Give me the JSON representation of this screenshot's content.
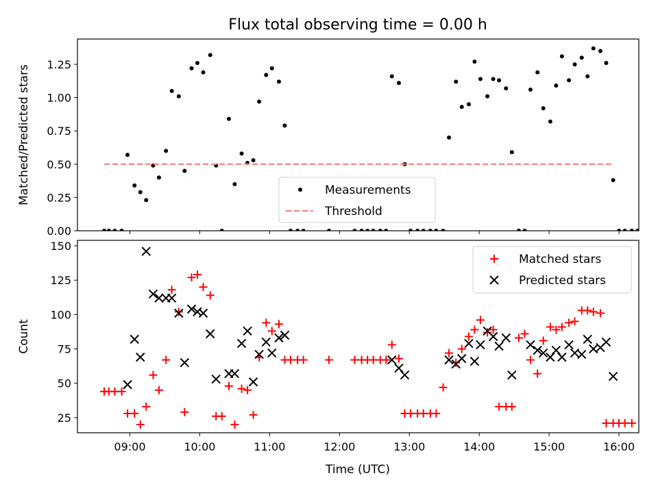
{
  "figure": {
    "title": "Flux total observing time = 0.00 h",
    "xlabel": "Time (UTC)"
  },
  "chart_data": [
    {
      "type": "scatter",
      "ylabel": "Matched/Predicted stars",
      "ylim": [
        0,
        1.44
      ],
      "xlim": [
        "08:15",
        "16:17"
      ],
      "yticks": [
        "0.00",
        "0.25",
        "0.50",
        "0.75",
        "1.00",
        "1.25"
      ],
      "legend_position": "lower-center",
      "series": [
        {
          "name": "Measurements",
          "marker": "dot",
          "color": "#000000",
          "points": [
            [
              "08:38",
              0
            ],
            [
              "08:42",
              0
            ],
            [
              "08:47",
              0
            ],
            [
              "08:53",
              0
            ],
            [
              "08:58",
              0.57
            ],
            [
              "09:04",
              0.34
            ],
            [
              "09:09",
              0.29
            ],
            [
              "09:14",
              0.23
            ],
            [
              "09:20",
              0.49
            ],
            [
              "09:25",
              0.4
            ],
            [
              "09:31",
              0.6
            ],
            [
              "09:36",
              1.05
            ],
            [
              "09:42",
              1.01
            ],
            [
              "09:47",
              0.45
            ],
            [
              "09:53",
              1.22
            ],
            [
              "09:58",
              1.26
            ],
            [
              "10:03",
              1.19
            ],
            [
              "10:09",
              1.32
            ],
            [
              "10:14",
              0.49
            ],
            [
              "10:19",
              0
            ],
            [
              "10:25",
              0.84
            ],
            [
              "10:30",
              0.35
            ],
            [
              "10:36",
              0.58
            ],
            [
              "10:41",
              0.51
            ],
            [
              "10:46",
              0.53
            ],
            [
              "10:51",
              0.97
            ],
            [
              "10:57",
              1.17
            ],
            [
              "11:02",
              1.22
            ],
            [
              "11:08",
              1.12
            ],
            [
              "11:13",
              0.79
            ],
            [
              "11:18",
              0
            ],
            [
              "11:24",
              0
            ],
            [
              "11:29",
              0
            ],
            [
              "11:51",
              0
            ],
            [
              "12:13",
              0
            ],
            [
              "12:19",
              0
            ],
            [
              "12:24",
              0
            ],
            [
              "12:29",
              0
            ],
            [
              "12:35",
              0
            ],
            [
              "12:40",
              0
            ],
            [
              "12:45",
              1.16
            ],
            [
              "12:51",
              1.11
            ],
            [
              "12:56",
              0.5
            ],
            [
              "13:01",
              0
            ],
            [
              "13:07",
              0
            ],
            [
              "13:12",
              0
            ],
            [
              "13:18",
              0
            ],
            [
              "13:23",
              0
            ],
            [
              "13:29",
              0
            ],
            [
              "13:34",
              0.7
            ],
            [
              "13:40",
              1.12
            ],
            [
              "13:45",
              0.93
            ],
            [
              "13:51",
              0.95
            ],
            [
              "13:56",
              1.27
            ],
            [
              "14:01",
              1.14
            ],
            [
              "14:07",
              1.01
            ],
            [
              "14:12",
              1.14
            ],
            [
              "14:17",
              1.13
            ],
            [
              "14:23",
              1.07
            ],
            [
              "14:28",
              0.59
            ],
            [
              "14:34",
              0
            ],
            [
              "14:39",
              0
            ],
            [
              "14:44",
              1.06
            ],
            [
              "14:50",
              1.19
            ],
            [
              "14:55",
              0.92
            ],
            [
              "15:01",
              0.82
            ],
            [
              "15:06",
              1.09
            ],
            [
              "15:11",
              1.31
            ],
            [
              "15:17",
              1.13
            ],
            [
              "15:22",
              1.25
            ],
            [
              "15:28",
              1.3
            ],
            [
              "15:33",
              1.16
            ],
            [
              "15:38",
              1.37
            ],
            [
              "15:44",
              1.35
            ],
            [
              "15:49",
              1.26
            ],
            [
              "15:55",
              0.38
            ],
            [
              "16:00",
              0
            ],
            [
              "16:05",
              0
            ],
            [
              "16:11",
              0
            ],
            [
              "16:16",
              0
            ]
          ]
        },
        {
          "name": "Threshold",
          "marker": "dashed-line",
          "color": "#ff8080",
          "points": [
            [
              "08:38",
              0.5
            ],
            [
              "15:55",
              0.5
            ]
          ]
        }
      ]
    },
    {
      "type": "scatter",
      "ylabel": "Count",
      "ylim": [
        14,
        154
      ],
      "xlim": [
        "08:15",
        "16:17"
      ],
      "yticks": [
        "25",
        "50",
        "75",
        "100",
        "125",
        "150"
      ],
      "xticks": [
        "09:00",
        "10:00",
        "11:00",
        "12:00",
        "13:00",
        "14:00",
        "15:00",
        "16:00"
      ],
      "legend_position": "top-right",
      "series": [
        {
          "name": "Matched stars",
          "marker": "plus",
          "color": "#ff0000",
          "points": [
            [
              "08:38",
              44
            ],
            [
              "08:42",
              44
            ],
            [
              "08:47",
              44
            ],
            [
              "08:53",
              44
            ],
            [
              "08:58",
              28
            ],
            [
              "09:04",
              28
            ],
            [
              "09:09",
              20
            ],
            [
              "09:14",
              33
            ],
            [
              "09:20",
              56
            ],
            [
              "09:25",
              45
            ],
            [
              "09:31",
              67
            ],
            [
              "09:36",
              118
            ],
            [
              "09:42",
              102
            ],
            [
              "09:47",
              29
            ],
            [
              "09:53",
              127
            ],
            [
              "09:58",
              129
            ],
            [
              "10:03",
              120
            ],
            [
              "10:09",
              114
            ],
            [
              "10:14",
              26
            ],
            [
              "10:19",
              26
            ],
            [
              "10:25",
              48
            ],
            [
              "10:30",
              20
            ],
            [
              "10:36",
              46
            ],
            [
              "10:41",
              45
            ],
            [
              "10:46",
              27
            ],
            [
              "10:51",
              69
            ],
            [
              "10:57",
              94
            ],
            [
              "11:02",
              88
            ],
            [
              "11:08",
              93
            ],
            [
              "11:13",
              67
            ],
            [
              "11:18",
              67
            ],
            [
              "11:24",
              67
            ],
            [
              "11:29",
              67
            ],
            [
              "11:51",
              67
            ],
            [
              "12:13",
              67
            ],
            [
              "12:19",
              67
            ],
            [
              "12:24",
              67
            ],
            [
              "12:29",
              67
            ],
            [
              "12:35",
              67
            ],
            [
              "12:40",
              67
            ],
            [
              "12:45",
              78
            ],
            [
              "12:51",
              68
            ],
            [
              "12:56",
              28
            ],
            [
              "13:01",
              28
            ],
            [
              "13:07",
              28
            ],
            [
              "13:12",
              28
            ],
            [
              "13:18",
              28
            ],
            [
              "13:23",
              28
            ],
            [
              "13:29",
              47
            ],
            [
              "13:34",
              72
            ],
            [
              "13:40",
              65
            ],
            [
              "13:45",
              75
            ],
            [
              "13:51",
              84
            ],
            [
              "13:56",
              89
            ],
            [
              "14:01",
              96
            ],
            [
              "14:07",
              87
            ],
            [
              "14:12",
              89
            ],
            [
              "14:17",
              33
            ],
            [
              "14:23",
              33
            ],
            [
              "14:28",
              33
            ],
            [
              "14:34",
              83
            ],
            [
              "14:39",
              86
            ],
            [
              "14:44",
              67
            ],
            [
              "14:50",
              57
            ],
            [
              "14:55",
              81
            ],
            [
              "15:01",
              91
            ],
            [
              "15:06",
              89
            ],
            [
              "15:11",
              91
            ],
            [
              "15:17",
              94
            ],
            [
              "15:22",
              95
            ],
            [
              "15:28",
              103
            ],
            [
              "15:33",
              103
            ],
            [
              "15:38",
              102
            ],
            [
              "15:44",
              101
            ],
            [
              "15:49",
              21
            ],
            [
              "15:55",
              21
            ],
            [
              "16:00",
              21
            ],
            [
              "16:05",
              21
            ],
            [
              "16:11",
              21
            ]
          ]
        },
        {
          "name": "Predicted stars",
          "marker": "x",
          "color": "#000000",
          "points": [
            [
              "08:58",
              49
            ],
            [
              "09:04",
              82
            ],
            [
              "09:09",
              69
            ],
            [
              "09:14",
              146
            ],
            [
              "09:20",
              115
            ],
            [
              "09:25",
              112
            ],
            [
              "09:31",
              112
            ],
            [
              "09:36",
              112
            ],
            [
              "09:42",
              101
            ],
            [
              "09:47",
              65
            ],
            [
              "09:53",
              104
            ],
            [
              "09:58",
              102
            ],
            [
              "10:03",
              101
            ],
            [
              "10:09",
              86
            ],
            [
              "10:14",
              53
            ],
            [
              "10:25",
              57
            ],
            [
              "10:30",
              57
            ],
            [
              "10:36",
              79
            ],
            [
              "10:41",
              88
            ],
            [
              "10:46",
              51
            ],
            [
              "10:51",
              71
            ],
            [
              "10:57",
              80
            ],
            [
              "11:02",
              72
            ],
            [
              "11:08",
              83
            ],
            [
              "11:13",
              85
            ],
            [
              "12:45",
              67
            ],
            [
              "12:51",
              61
            ],
            [
              "12:56",
              56
            ],
            [
              "13:34",
              67
            ],
            [
              "13:40",
              64
            ],
            [
              "13:45",
              68
            ],
            [
              "13:51",
              79
            ],
            [
              "13:56",
              66
            ],
            [
              "14:01",
              78
            ],
            [
              "14:07",
              88
            ],
            [
              "14:12",
              84
            ],
            [
              "14:17",
              77
            ],
            [
              "14:23",
              83
            ],
            [
              "14:28",
              56
            ],
            [
              "14:44",
              78
            ],
            [
              "14:50",
              74
            ],
            [
              "14:55",
              72
            ],
            [
              "15:01",
              69
            ],
            [
              "15:06",
              74
            ],
            [
              "15:11",
              69
            ],
            [
              "15:17",
              78
            ],
            [
              "15:22",
              72
            ],
            [
              "15:28",
              71
            ],
            [
              "15:33",
              82
            ],
            [
              "15:38",
              75
            ],
            [
              "15:44",
              76
            ],
            [
              "15:49",
              80
            ],
            [
              "15:55",
              55
            ]
          ]
        }
      ]
    }
  ]
}
